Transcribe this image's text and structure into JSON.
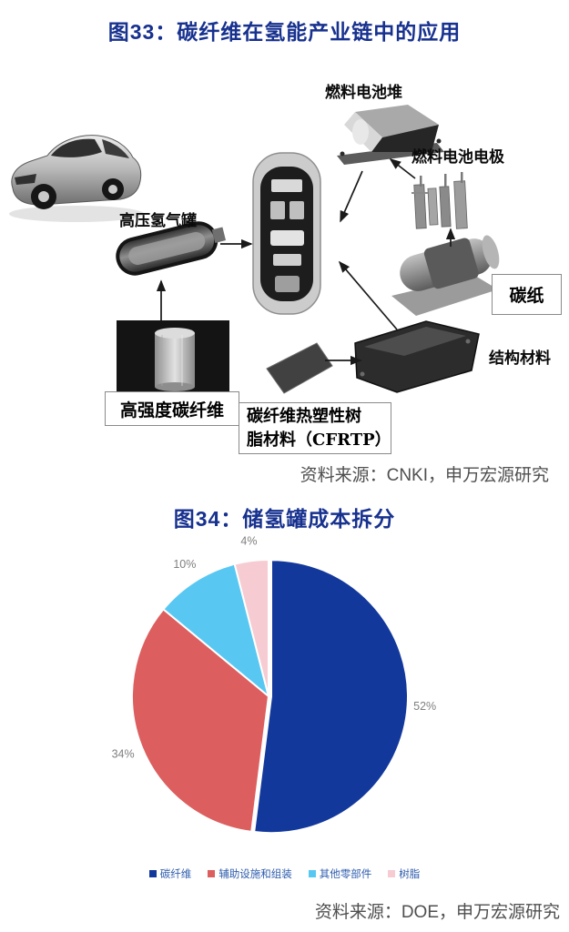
{
  "colors": {
    "title_navy": "#17318f",
    "source_gray": "#4f4f4f",
    "legend_text_blue": "#2e5cae",
    "pie_label_gray": "#7f7f7f"
  },
  "figure33": {
    "title": "图33：碳纤维在氢能产业链中的应用",
    "source": "资料来源：CNKI，申万宏源研究",
    "labels": {
      "fuel_cell_stack": "燃料电池堆",
      "fuel_cell_electrode": "燃料电池电极",
      "high_pressure_tank": "高压氢气罐",
      "carbon_paper": "碳纸",
      "structural_material": "结构材料",
      "high_strength_cf": "高强度碳纤维",
      "cfrtp_line1": "碳纤维热塑性树",
      "cfrtp_line2": "脂材料（CFRTP）"
    }
  },
  "figure34": {
    "title": "图34：储氢罐成本拆分",
    "source": "资料来源：DOE，申万宏源研究"
  },
  "chart_data": {
    "type": "pie",
    "title": "图34：储氢罐成本拆分",
    "categories": [
      "碳纤维",
      "辅助设施和组装",
      "其他零部件",
      "树脂"
    ],
    "values": [
      52,
      34,
      10,
      4
    ],
    "labels": [
      "52%",
      "34%",
      "10%",
      "4%"
    ],
    "colors": [
      "#12389b",
      "#dd5e5e",
      "#58c8f2",
      "#f6ccd2"
    ],
    "start_angle_deg": 0,
    "direction": "clockwise",
    "legend_position": "bottom",
    "label_color": "#7f7f7f",
    "exploded_slice": "碳纤维"
  }
}
